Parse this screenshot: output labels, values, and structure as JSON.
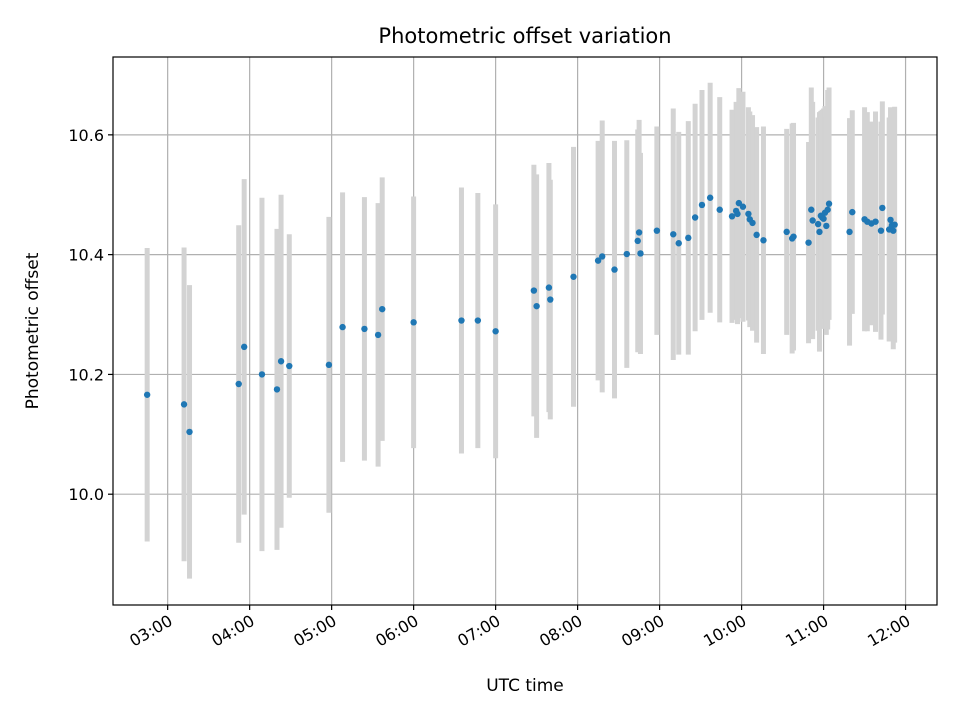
{
  "chart_data": {
    "type": "scatter",
    "title": "Photometric offset variation",
    "xlabel": "UTC time",
    "ylabel": "Photometric offset",
    "x_unit": "hours UTC",
    "xlim": [
      "02:20",
      "12:23"
    ],
    "ylim": [
      9.815,
      10.73
    ],
    "x_ticks": [
      "03:00",
      "04:00",
      "05:00",
      "06:00",
      "07:00",
      "08:00",
      "09:00",
      "10:00",
      "11:00",
      "12:00"
    ],
    "y_ticks": [
      "10.0",
      "10.2",
      "10.4",
      "10.6"
    ],
    "y_tick_values": [
      10.0,
      10.2,
      10.4,
      10.6
    ],
    "grid": true,
    "colors": {
      "point": "#1f77b4",
      "errorbar": "#d3d3d3",
      "grid": "#b0b0b0"
    },
    "series": [
      {
        "x": [
          "02:45",
          "03:12",
          "03:16",
          "03:52",
          "03:56",
          "04:09",
          "04:20",
          "04:23",
          "04:29",
          "04:58",
          "05:08",
          "05:24",
          "05:34",
          "05:37",
          "06:00",
          "06:35",
          "06:47",
          "07:00",
          "07:28",
          "07:30",
          "07:39",
          "07:40",
          "07:57",
          "08:15",
          "08:18",
          "08:27",
          "08:36",
          "08:44",
          "08:45",
          "08:46",
          "08:58",
          "09:10",
          "09:14",
          "09:21",
          "09:26",
          "09:31",
          "09:37",
          "09:44",
          "09:53",
          "09:56",
          "09:57",
          "09:58",
          "10:01",
          "10:05",
          "10:06",
          "10:08",
          "10:11",
          "10:16",
          "10:33",
          "10:37",
          "10:38",
          "10:49",
          "10:51",
          "10:52",
          "10:56",
          "10:57",
          "10:58",
          "10:59",
          "11:00",
          "11:01",
          "11:02",
          "11:03",
          "11:04",
          "11:19",
          "11:21",
          "11:30",
          "11:32",
          "11:35",
          "11:38",
          "11:42",
          "11:43",
          "11:48",
          "11:49",
          "11:50",
          "11:51",
          "11:52"
        ],
        "y": [
          10.166,
          10.15,
          10.104,
          10.184,
          10.246,
          10.2,
          10.175,
          10.222,
          10.214,
          10.216,
          10.279,
          10.276,
          10.266,
          10.309,
          10.287,
          10.29,
          10.29,
          10.272,
          10.34,
          10.314,
          10.345,
          10.325,
          10.363,
          10.39,
          10.397,
          10.375,
          10.401,
          10.423,
          10.437,
          10.402,
          10.44,
          10.434,
          10.419,
          10.428,
          10.462,
          10.483,
          10.495,
          10.475,
          10.464,
          10.473,
          10.468,
          10.486,
          10.48,
          10.468,
          10.459,
          10.453,
          10.433,
          10.424,
          10.438,
          10.427,
          10.43,
          10.42,
          10.475,
          10.457,
          10.451,
          10.438,
          10.465,
          10.462,
          10.46,
          10.47,
          10.448,
          10.475,
          10.485,
          10.438,
          10.471,
          10.459,
          10.455,
          10.452,
          10.455,
          10.44,
          10.478,
          10.442,
          10.458,
          10.449,
          10.44,
          10.45
        ],
        "err": [
          0.245,
          0.262,
          0.245,
          0.265,
          0.28,
          0.295,
          0.268,
          0.278,
          0.22,
          0.247,
          0.225,
          0.22,
          0.22,
          0.22,
          0.21,
          0.222,
          0.213,
          0.212,
          0.21,
          0.22,
          0.208,
          0.2,
          0.217,
          0.2,
          0.227,
          0.215,
          0.19,
          0.186,
          0.188,
          0.168,
          0.174,
          0.21,
          0.186,
          0.195,
          0.19,
          0.192,
          0.192,
          0.188,
          0.178,
          0.182,
          0.184,
          0.192,
          0.192,
          0.178,
          0.18,
          0.18,
          0.18,
          0.19,
          0.172,
          0.192,
          0.19,
          0.168,
          0.204,
          0.198,
          0.178,
          0.2,
          0.175,
          0.18,
          0.184,
          0.178,
          0.182,
          0.2,
          0.194,
          0.19,
          0.17,
          0.187,
          0.183,
          0.17,
          0.184,
          0.182,
          0.178,
          0.187,
          0.188,
          0.194,
          0.198,
          0.197
        ]
      }
    ]
  }
}
